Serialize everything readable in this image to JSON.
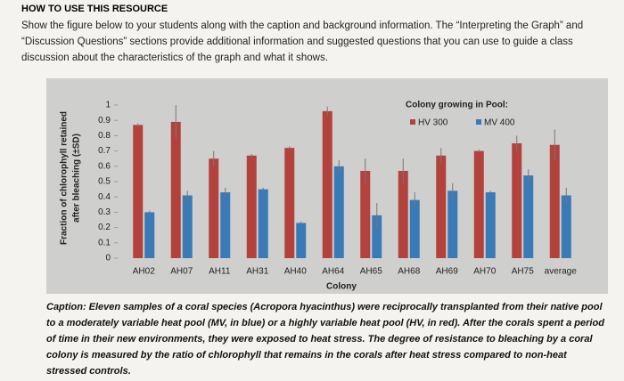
{
  "header": {
    "title": "HOW TO USE THIS RESOURCE",
    "text": "Show the figure below to your students along with the caption and background information. The “Interpreting the Graph” and “Discussion Questions” sections provide additional information and suggested questions that you can use to guide a class discussion about the characteristics of the graph and what it shows."
  },
  "chart_data": {
    "type": "bar",
    "ylabel": [
      "Fraction of chlorophyll retained",
      "after bleaching (±SD)"
    ],
    "xlabel": "Colony",
    "legend_title": "Colony growing in Pool:",
    "categories": [
      "AH02",
      "AH07",
      "AH11",
      "AH31",
      "AH40",
      "AH64",
      "AH65",
      "AH68",
      "AH69",
      "AH70",
      "AH75",
      "average"
    ],
    "series": [
      {
        "name": "HV 300",
        "color": "#b3423d",
        "values": [
          0.87,
          0.89,
          0.65,
          0.67,
          0.72,
          0.96,
          0.57,
          0.57,
          0.67,
          0.7,
          0.75,
          0.74
        ],
        "errors": [
          0.01,
          0.11,
          0.05,
          0.01,
          0.01,
          0.03,
          0.08,
          0.08,
          0.05,
          0.01,
          0.05,
          0.1
        ]
      },
      {
        "name": "MV 400",
        "color": "#3a7ab6",
        "values": [
          0.3,
          0.41,
          0.43,
          0.45,
          0.23,
          0.6,
          0.28,
          0.38,
          0.44,
          0.43,
          0.54,
          0.41
        ],
        "errors": [
          0.01,
          0.03,
          0.03,
          0.01,
          0.01,
          0.04,
          0.08,
          0.05,
          0.05,
          0.01,
          0.04,
          0.05
        ]
      }
    ],
    "ylim": [
      0,
      1
    ],
    "yticks": [
      0,
      0.1,
      0.2,
      0.3,
      0.4,
      0.5,
      0.6,
      0.7,
      0.8,
      0.9,
      1
    ]
  },
  "caption": "Caption: Eleven samples of a coral species (Acropora hyacinthus) were reciprocally transplanted from their native pool to a moderately variable heat pool (MV, in blue) or a highly variable heat pool (HV, in red). After the corals spent a period of time in their new environments, they were exposed to heat stress. The degree of resistance to bleaching by a coral colony is measured by the ratio of chlorophyll that remains in the corals after heat stress compared to non-heat stressed controls."
}
